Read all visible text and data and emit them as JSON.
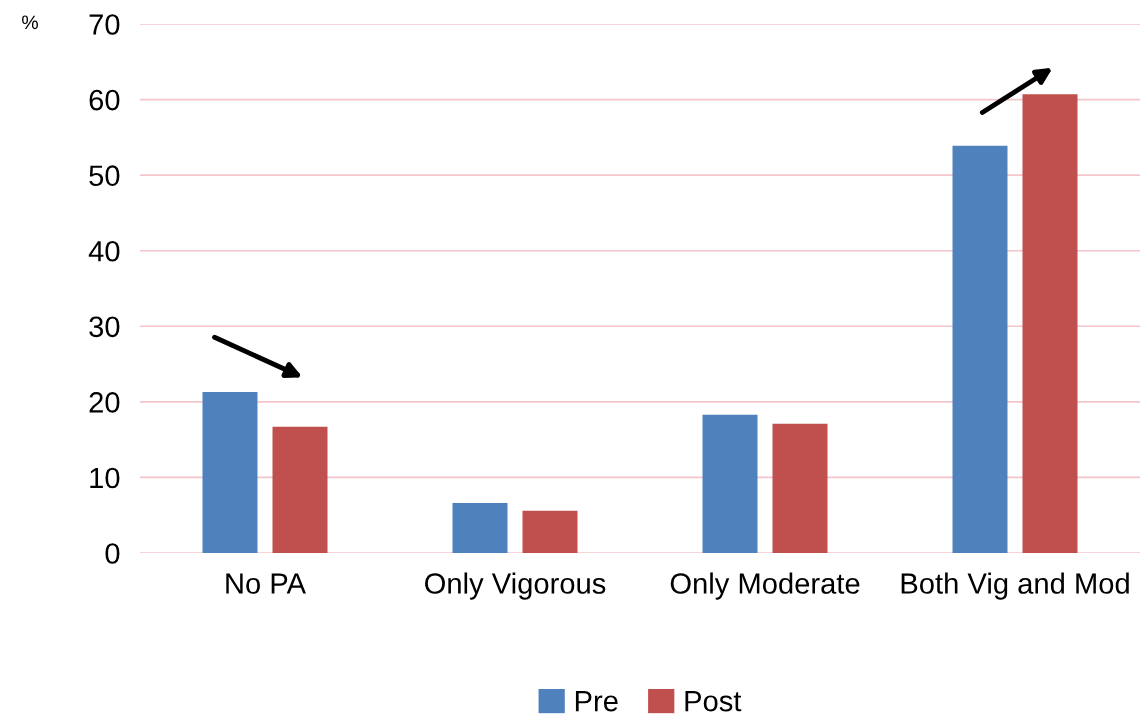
{
  "chart_data": {
    "type": "bar",
    "ylabel": "%",
    "categories": [
      "No PA",
      "Only Vigorous",
      "Only Moderate",
      "Both Vig and Mod"
    ],
    "series": [
      {
        "name": "Pre",
        "color": "#4f81bd",
        "values": [
          21.3,
          6.6,
          18.3,
          53.9
        ]
      },
      {
        "name": "Post",
        "color": "#c0504d",
        "values": [
          16.7,
          5.6,
          17.1,
          60.7
        ]
      }
    ],
    "ylim": [
      0,
      70
    ],
    "yticks": [
      0,
      10,
      20,
      30,
      40,
      50,
      60,
      70
    ],
    "grid": "y",
    "legend": "bottom"
  }
}
